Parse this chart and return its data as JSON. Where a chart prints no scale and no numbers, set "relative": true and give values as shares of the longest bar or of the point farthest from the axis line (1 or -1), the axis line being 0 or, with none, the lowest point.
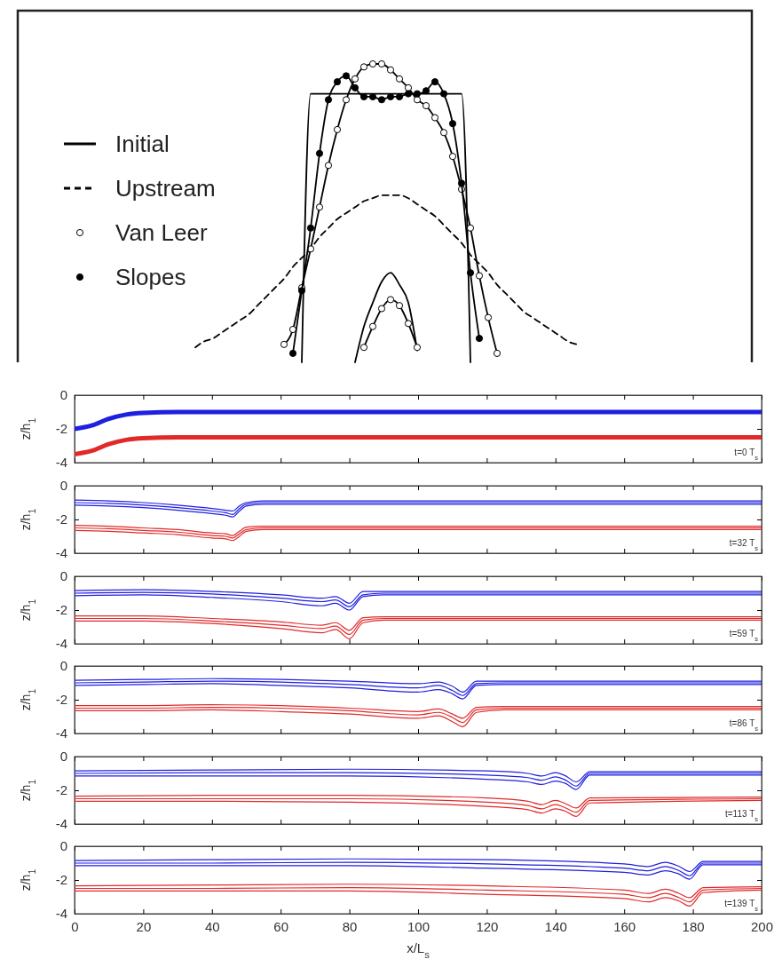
{
  "chart_data": [
    {
      "type": "line",
      "relative": true,
      "legend": "left",
      "categories": [
        null,
        null,
        null,
        null,
        null,
        null,
        null,
        null,
        null,
        null,
        null,
        null,
        null,
        null,
        null,
        null,
        null,
        null,
        null,
        null,
        null,
        null,
        null,
        null,
        null,
        null,
        null,
        null,
        null,
        null,
        null,
        null,
        null,
        null,
        null,
        null,
        null,
        null,
        null,
        null,
        null,
        null,
        null,
        null,
        null,
        null,
        null,
        null,
        null,
        null,
        null,
        null,
        null,
        null,
        null,
        null,
        null,
        null,
        null,
        null,
        null,
        null,
        null,
        null,
        null,
        null,
        null,
        null,
        null,
        null,
        null,
        null,
        null,
        null,
        null,
        null,
        null,
        null,
        null,
        null,
        null,
        null,
        null
      ],
      "series": [
        {
          "name": "Initial",
          "color": "#000000",
          "marker": "none",
          "line_style": "solid",
          "values": [
            null,
            null,
            null,
            null,
            null,
            null,
            null,
            null,
            null,
            null,
            null,
            null,
            null,
            null,
            null,
            null,
            null,
            null,
            null,
            null,
            null,
            null,
            null,
            null,
            null,
            null,
            null,
            null,
            null,
            null,
            null,
            null,
            0,
            0.9,
            0.9,
            0.9,
            0.9,
            0.9,
            0.9,
            0.9,
            0.9,
            0.9,
            0.9,
            0.9,
            0.9,
            0.9,
            0.9,
            0.9,
            0.9,
            0.9,
            0.9,
            0,
            null,
            null,
            null,
            null,
            null,
            null,
            null,
            null,
            null,
            null,
            null,
            null,
            null,
            null,
            null,
            null,
            null,
            null,
            null,
            null,
            null,
            null,
            null,
            null,
            null,
            null,
            null,
            null,
            null,
            null,
            null
          ]
        },
        {
          "name": "Upstream",
          "color": "#000000",
          "marker": "none",
          "line_style": "dashed",
          "values": [
            null,
            null,
            null,
            null,
            null,
            null,
            null,
            null,
            null,
            null,
            null,
            null,
            null,
            null,
            null,
            null,
            null,
            null,
            null,
            null,
            0.05,
            0.07,
            0.08,
            0.1,
            0.12,
            0.14,
            0.16,
            0.19,
            0.22,
            0.25,
            0.28,
            0.32,
            0.35,
            0.38,
            0.42,
            0.45,
            0.48,
            0.5,
            0.52,
            0.54,
            0.55,
            0.56,
            0.56,
            0.56,
            0.55,
            0.53,
            0.51,
            0.49,
            0.46,
            0.43,
            0.4,
            0.36,
            0.33,
            0.3,
            0.26,
            0.23,
            0.2,
            0.17,
            0.15,
            0.13,
            0.11,
            0.09,
            0.07,
            0.06,
            null,
            null,
            null,
            null,
            null,
            null,
            null,
            null,
            null,
            null,
            null,
            null,
            null,
            null,
            null,
            null,
            null,
            null,
            null
          ]
        },
        {
          "name": "Van Leer",
          "color": "#000000",
          "marker": "circle",
          "line_style": "solid",
          "values": [
            null,
            null,
            null,
            null,
            null,
            null,
            null,
            null,
            null,
            null,
            null,
            null,
            null,
            null,
            null,
            null,
            null,
            null,
            null,
            null,
            null,
            null,
            null,
            null,
            null,
            null,
            null,
            null,
            null,
            null,
            0.06,
            0.11,
            0.25,
            0.38,
            0.52,
            0.66,
            0.78,
            0.88,
            0.95,
            0.99,
            1.0,
            1.0,
            0.98,
            0.95,
            0.92,
            0.88,
            0.86,
            0.82,
            0.77,
            0.69,
            0.58,
            0.45,
            0.29,
            0.15,
            0.03,
            null,
            null,
            null,
            null,
            null,
            null,
            null,
            null,
            null,
            null,
            null,
            null,
            null,
            null,
            null,
            null,
            null,
            null,
            null,
            null,
            null,
            null,
            null,
            null,
            null,
            null,
            null,
            null
          ]
        },
        {
          "name": "Slopes",
          "color": "#000000",
          "marker": "circle",
          "line_style": "solid",
          "colors": [
            null,
            null,
            null,
            null,
            null,
            null,
            null,
            null,
            null,
            null,
            null,
            null,
            null,
            null,
            null,
            null,
            null,
            null,
            null,
            null,
            null,
            null,
            null,
            null,
            null,
            null,
            null,
            null,
            null,
            null,
            null,
            "#000000",
            "#000000",
            "#000000",
            "#000000",
            "#000000",
            "#000000",
            "#000000",
            "#000000",
            "#000000",
            "#000000",
            "#000000",
            "#000000",
            "#000000",
            "#000000",
            "#000000",
            "#000000",
            "#000000",
            "#000000",
            "#000000",
            "#000000",
            "#000000",
            "#000000",
            null,
            null,
            null,
            null,
            null,
            null,
            null,
            null,
            null,
            null,
            null,
            null,
            null,
            null,
            null,
            null,
            null,
            null,
            null,
            null,
            null,
            null,
            null,
            null,
            null,
            null,
            null,
            null,
            null,
            null
          ],
          "values": [
            null,
            null,
            null,
            null,
            null,
            null,
            null,
            null,
            null,
            null,
            null,
            null,
            null,
            null,
            null,
            null,
            null,
            null,
            null,
            null,
            null,
            null,
            null,
            null,
            null,
            null,
            null,
            null,
            null,
            null,
            null,
            0.03,
            0.24,
            0.45,
            0.7,
            0.88,
            0.94,
            0.96,
            0.92,
            0.89,
            0.89,
            0.88,
            0.89,
            0.89,
            0.9,
            0.9,
            0.91,
            0.94,
            0.9,
            0.8,
            0.6,
            0.3,
            0.08,
            null,
            null,
            null,
            null,
            null,
            null,
            null,
            null,
            null,
            null,
            null,
            null,
            null,
            null,
            null,
            null,
            null,
            null,
            null,
            null,
            null,
            null,
            null,
            null,
            null,
            null,
            null,
            null,
            null,
            null
          ]
        },
        {
          "color": "#000000",
          "marker": "none",
          "line_style": "solid",
          "values": [
            null,
            null,
            null,
            null,
            null,
            null,
            null,
            null,
            null,
            null,
            null,
            null,
            null,
            null,
            null,
            null,
            null,
            null,
            null,
            null,
            null,
            null,
            null,
            null,
            null,
            null,
            null,
            null,
            null,
            null,
            null,
            null,
            null,
            null,
            null,
            null,
            null,
            null,
            0,
            0.12,
            0.2,
            0.27,
            0.3,
            0.26,
            0.2,
            0.04,
            null,
            null,
            null,
            null,
            null,
            null,
            null,
            null,
            null,
            null,
            null,
            null,
            null,
            null,
            null,
            null,
            null,
            null,
            null,
            null,
            null,
            null,
            null,
            null,
            null,
            null,
            null,
            null,
            null,
            null,
            null,
            null,
            null,
            null,
            null,
            null,
            null
          ]
        },
        {
          "color": "#000000",
          "marker": "circle",
          "line_style": "solid",
          "values": [
            null,
            null,
            null,
            null,
            null,
            null,
            null,
            null,
            null,
            null,
            null,
            null,
            null,
            null,
            null,
            null,
            null,
            null,
            null,
            null,
            null,
            null,
            null,
            null,
            null,
            null,
            null,
            null,
            null,
            null,
            null,
            null,
            null,
            null,
            null,
            null,
            null,
            null,
            null,
            0.05,
            0.12,
            0.18,
            0.21,
            0.19,
            0.13,
            0.05,
            null,
            null,
            null,
            null,
            null,
            null,
            null,
            null,
            null,
            null,
            null,
            null,
            null,
            null,
            null,
            null,
            null,
            null,
            null,
            null,
            null,
            null,
            null,
            null,
            null,
            null,
            null,
            null,
            null,
            null,
            null,
            null,
            null,
            null,
            null,
            null,
            null
          ]
        }
      ]
    },
    {
      "type": "line",
      "ylabel": "z/h$_{1}$",
      "xlim": [
        0,
        200
      ],
      "xticks": [
        0,
        20,
        40,
        60,
        80,
        100,
        120,
        140,
        160,
        180,
        200
      ],
      "ylim": [
        -4,
        0
      ],
      "yticks": [
        -4,
        -2,
        0
      ],
      "tick_labels": "y",
      "annotations": [
        "t=0 T$_{s}$"
      ],
      "x": [
        0,
        5,
        10,
        15,
        20,
        30,
        200
      ],
      "series": [
        {
          "color": "#1f1fe0",
          "values": [
            -2.0,
            -1.8,
            -1.4,
            -1.15,
            -1.05,
            -1.0,
            -1.0
          ]
        },
        {
          "color": "#e02a2a",
          "values": [
            -3.5,
            -3.3,
            -2.9,
            -2.65,
            -2.55,
            -2.5,
            -2.5
          ]
        }
      ]
    },
    {
      "type": "line",
      "ylabel": "z/h$_{1}$",
      "xlim": [
        0,
        200
      ],
      "xticks": [
        0,
        20,
        40,
        60,
        80,
        100,
        120,
        140,
        160,
        180,
        200
      ],
      "ylim": [
        -4,
        0
      ],
      "yticks": [
        -4,
        -2,
        0
      ],
      "tick_labels": "y",
      "annotations": [
        "t=32 T$_{s}$"
      ],
      "x": [
        0,
        10,
        20,
        30,
        40,
        44,
        46,
        48,
        50,
        55,
        200
      ],
      "series": [
        {
          "color": "#1f1fe0",
          "values": [
            -0.85,
            -0.9,
            -1.0,
            -1.15,
            -1.35,
            -1.45,
            -1.5,
            -1.2,
            -1.0,
            -0.9,
            -0.9
          ]
        },
        {
          "color": "#1f1fe0",
          "values": [
            -1.0,
            -1.05,
            -1.15,
            -1.3,
            -1.5,
            -1.6,
            -1.7,
            -1.35,
            -1.1,
            -1.0,
            -1.0
          ]
        },
        {
          "color": "#1f1fe0",
          "values": [
            -1.15,
            -1.2,
            -1.3,
            -1.45,
            -1.65,
            -1.75,
            -1.85,
            -1.5,
            -1.2,
            -1.1,
            -1.1
          ]
        },
        {
          "color": "#e02a2a",
          "values": [
            -2.35,
            -2.4,
            -2.5,
            -2.6,
            -2.8,
            -2.85,
            -2.95,
            -2.7,
            -2.45,
            -2.4,
            -2.4
          ]
        },
        {
          "color": "#e02a2a",
          "values": [
            -2.5,
            -2.55,
            -2.65,
            -2.75,
            -2.95,
            -3.0,
            -3.1,
            -2.85,
            -2.6,
            -2.5,
            -2.5
          ]
        },
        {
          "color": "#e02a2a",
          "values": [
            -2.65,
            -2.7,
            -2.8,
            -2.9,
            -3.1,
            -3.15,
            -3.25,
            -3.0,
            -2.7,
            -2.6,
            -2.6
          ]
        }
      ]
    },
    {
      "type": "line",
      "ylabel": "z/h$_{1}$",
      "xlim": [
        0,
        200
      ],
      "xticks": [
        0,
        20,
        40,
        60,
        80,
        100,
        120,
        140,
        160,
        180,
        200
      ],
      "ylim": [
        -4,
        0
      ],
      "yticks": [
        -4,
        -2,
        0
      ],
      "tick_labels": "y",
      "annotations": [
        "t=59 T$_{s}$"
      ],
      "x": [
        0,
        20,
        40,
        60,
        72,
        76,
        80,
        84,
        90,
        200
      ],
      "series": [
        {
          "color": "#1f1fe0",
          "values": [
            -0.85,
            -0.8,
            -0.9,
            -1.1,
            -1.3,
            -1.2,
            -1.6,
            -0.9,
            -0.9,
            -0.9
          ]
        },
        {
          "color": "#1f1fe0",
          "values": [
            -1.0,
            -0.95,
            -1.05,
            -1.3,
            -1.5,
            -1.4,
            -1.8,
            -1.1,
            -1.0,
            -1.0
          ]
        },
        {
          "color": "#1f1fe0",
          "values": [
            -1.15,
            -1.1,
            -1.25,
            -1.5,
            -1.75,
            -1.6,
            -2.0,
            -1.2,
            -1.1,
            -1.1
          ]
        },
        {
          "color": "#e02a2a",
          "values": [
            -2.35,
            -2.35,
            -2.5,
            -2.7,
            -2.9,
            -2.75,
            -3.2,
            -2.45,
            -2.4,
            -2.4
          ]
        },
        {
          "color": "#e02a2a",
          "values": [
            -2.5,
            -2.5,
            -2.65,
            -2.9,
            -3.1,
            -2.95,
            -3.45,
            -2.6,
            -2.5,
            -2.5
          ]
        },
        {
          "color": "#e02a2a",
          "values": [
            -2.65,
            -2.65,
            -2.8,
            -3.1,
            -3.35,
            -3.15,
            -3.7,
            -2.75,
            -2.6,
            -2.6
          ]
        }
      ]
    },
    {
      "type": "line",
      "ylabel": "z/h$_{1}$",
      "xlim": [
        0,
        200
      ],
      "xticks": [
        0,
        20,
        40,
        60,
        80,
        100,
        120,
        140,
        160,
        180,
        200
      ],
      "ylim": [
        -4,
        0
      ],
      "yticks": [
        -4,
        -2,
        0
      ],
      "tick_labels": "y",
      "annotations": [
        "t=86 T$_{s}$"
      ],
      "x": [
        0,
        20,
        40,
        60,
        80,
        100,
        106,
        110,
        113,
        117,
        125,
        200
      ],
      "series": [
        {
          "color": "#1f1fe0",
          "values": [
            -0.85,
            -0.8,
            -0.75,
            -0.8,
            -0.9,
            -1.05,
            -0.95,
            -1.2,
            -1.55,
            -0.9,
            -0.9,
            -0.9
          ]
        },
        {
          "color": "#1f1fe0",
          "values": [
            -1.0,
            -0.95,
            -0.9,
            -0.95,
            -1.1,
            -1.3,
            -1.15,
            -1.45,
            -1.75,
            -1.05,
            -1.0,
            -1.0
          ]
        },
        {
          "color": "#1f1fe0",
          "values": [
            -1.15,
            -1.1,
            -1.05,
            -1.15,
            -1.3,
            -1.55,
            -1.4,
            -1.65,
            -1.95,
            -1.15,
            -1.1,
            -1.1
          ]
        },
        {
          "color": "#e02a2a",
          "values": [
            -2.35,
            -2.35,
            -2.3,
            -2.35,
            -2.5,
            -2.7,
            -2.55,
            -2.85,
            -3.1,
            -2.45,
            -2.4,
            -2.4
          ]
        },
        {
          "color": "#e02a2a",
          "values": [
            -2.5,
            -2.5,
            -2.45,
            -2.5,
            -2.65,
            -2.9,
            -2.75,
            -3.05,
            -3.35,
            -2.6,
            -2.5,
            -2.5
          ]
        },
        {
          "color": "#e02a2a",
          "values": [
            -2.65,
            -2.65,
            -2.6,
            -2.7,
            -2.85,
            -3.1,
            -2.95,
            -3.3,
            -3.6,
            -2.75,
            -2.6,
            -2.6
          ]
        }
      ]
    },
    {
      "type": "line",
      "ylabel": "z/h$_{1}$",
      "xlim": [
        0,
        200
      ],
      "xticks": [
        0,
        20,
        40,
        60,
        80,
        100,
        120,
        140,
        160,
        180,
        200
      ],
      "ylim": [
        -4,
        0
      ],
      "yticks": [
        -4,
        -2,
        0
      ],
      "tick_labels": "y",
      "annotations": [
        "t=113 T$_{s}$"
      ],
      "x": [
        0,
        40,
        80,
        120,
        132,
        136,
        140,
        143,
        146,
        150,
        200
      ],
      "series": [
        {
          "color": "#1f1fe0",
          "values": [
            -0.85,
            -0.8,
            -0.75,
            -0.85,
            -1.0,
            -1.15,
            -0.95,
            -1.15,
            -1.5,
            -0.9,
            -0.9
          ]
        },
        {
          "color": "#1f1fe0",
          "values": [
            -1.0,
            -0.95,
            -0.95,
            -1.1,
            -1.25,
            -1.4,
            -1.2,
            -1.4,
            -1.75,
            -1.0,
            -1.0
          ]
        },
        {
          "color": "#1f1fe0",
          "values": [
            -1.15,
            -1.15,
            -1.15,
            -1.35,
            -1.5,
            -1.65,
            -1.45,
            -1.6,
            -1.95,
            -1.1,
            -1.1
          ]
        },
        {
          "color": "#e02a2a",
          "values": [
            -2.35,
            -2.3,
            -2.3,
            -2.45,
            -2.65,
            -2.85,
            -2.6,
            -2.8,
            -3.05,
            -2.45,
            -2.4
          ]
        },
        {
          "color": "#e02a2a",
          "values": [
            -2.5,
            -2.5,
            -2.5,
            -2.7,
            -2.9,
            -3.1,
            -2.85,
            -3.05,
            -3.3,
            -2.6,
            -2.5
          ]
        },
        {
          "color": "#e02a2a",
          "values": [
            -2.65,
            -2.65,
            -2.7,
            -2.95,
            -3.15,
            -3.35,
            -3.1,
            -3.25,
            -3.55,
            -2.75,
            -2.6
          ]
        }
      ]
    },
    {
      "type": "line",
      "ylabel": "z/h$_{1}$",
      "xlabel": "x/L$_{s}$",
      "xlim": [
        0,
        200
      ],
      "xticks": [
        0,
        20,
        40,
        60,
        80,
        100,
        120,
        140,
        160,
        180,
        200
      ],
      "ylim": [
        -4,
        0
      ],
      "yticks": [
        -4,
        -2,
        0
      ],
      "annotations": [
        "t=139 T$_{s}$"
      ],
      "x": [
        0,
        40,
        80,
        120,
        160,
        167,
        172,
        176,
        179,
        183,
        200
      ],
      "series": [
        {
          "color": "#1f1fe0",
          "values": [
            -0.85,
            -0.8,
            -0.75,
            -0.8,
            -1.05,
            -1.2,
            -0.95,
            -1.2,
            -1.5,
            -0.9,
            -0.9
          ]
        },
        {
          "color": "#1f1fe0",
          "values": [
            -1.0,
            -1.0,
            -0.95,
            -1.05,
            -1.3,
            -1.45,
            -1.2,
            -1.45,
            -1.75,
            -1.0,
            -1.0
          ]
        },
        {
          "color": "#1f1fe0",
          "values": [
            -1.15,
            -1.15,
            -1.15,
            -1.3,
            -1.55,
            -1.7,
            -1.45,
            -1.65,
            -1.95,
            -1.1,
            -1.1
          ]
        },
        {
          "color": "#e02a2a",
          "values": [
            -2.35,
            -2.3,
            -2.25,
            -2.35,
            -2.6,
            -2.8,
            -2.55,
            -2.8,
            -3.05,
            -2.45,
            -2.4
          ]
        },
        {
          "color": "#e02a2a",
          "values": [
            -2.5,
            -2.5,
            -2.45,
            -2.6,
            -2.85,
            -3.05,
            -2.8,
            -3.05,
            -3.3,
            -2.6,
            -2.5
          ]
        },
        {
          "color": "#e02a2a",
          "values": [
            -2.65,
            -2.65,
            -2.65,
            -2.85,
            -3.1,
            -3.3,
            -3.05,
            -3.25,
            -3.55,
            -2.75,
            -2.6
          ]
        }
      ]
    }
  ]
}
